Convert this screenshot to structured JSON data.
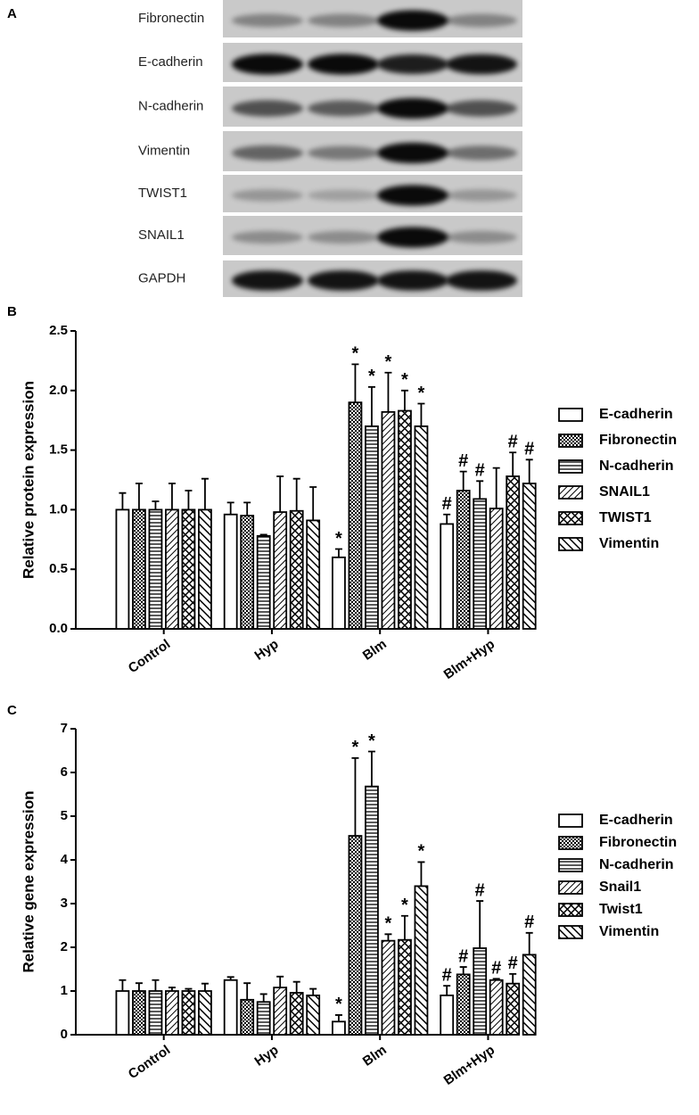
{
  "blot": {
    "label": "A",
    "proteins": [
      "Fibronectin",
      "E-cadherin",
      "N-cadherin",
      "Vimentin",
      "TWIST1",
      "SNAIL1",
      "GAPDH"
    ]
  },
  "chart_data": [
    {
      "type": "bar",
      "panel": "B",
      "ylabel": "Relative protein expression",
      "categories": [
        "Control",
        "Hyp",
        "Blm",
        "Blm+Hyp"
      ],
      "ylim": [
        0,
        2.5
      ],
      "yticks": [
        {
          "value": 0,
          "label": "0.0"
        },
        0.5,
        {
          "value": 1,
          "label": "1.0"
        },
        1.5,
        {
          "value": 2,
          "label": "2.0"
        },
        2.5
      ],
      "series": [
        {
          "name": "E-cadherin",
          "pattern": "none",
          "values": [
            1.0,
            0.96,
            0.6,
            0.88
          ],
          "errors": [
            0.14,
            0.1,
            0.07,
            0.08
          ],
          "markers": [
            null,
            null,
            "*",
            "#"
          ]
        },
        {
          "name": "Fibronectin",
          "pattern": "checker",
          "values": [
            1.0,
            0.95,
            1.9,
            1.16
          ],
          "errors": [
            0.22,
            0.11,
            0.32,
            0.16
          ],
          "markers": [
            null,
            null,
            "*",
            "#"
          ]
        },
        {
          "name": "N-cadherin",
          "pattern": "horizontal",
          "values": [
            1.0,
            0.78,
            1.7,
            1.09
          ],
          "errors": [
            0.07,
            0.01,
            0.33,
            0.15
          ],
          "markers": [
            null,
            null,
            "*",
            "#"
          ]
        },
        {
          "name": "SNAIL1",
          "pattern": "diagonal",
          "values": [
            1.0,
            0.98,
            1.82,
            1.01
          ],
          "errors": [
            0.22,
            0.3,
            0.33,
            0.34
          ],
          "markers": [
            null,
            null,
            "*",
            null
          ]
        },
        {
          "name": "TWIST1",
          "pattern": "cross",
          "values": [
            1.0,
            0.99,
            1.83,
            1.28
          ],
          "errors": [
            0.16,
            0.27,
            0.17,
            0.2
          ],
          "markers": [
            null,
            null,
            "*",
            "#"
          ]
        },
        {
          "name": "Vimentin",
          "pattern": "backdiagonal",
          "values": [
            1.0,
            0.91,
            1.7,
            1.22
          ],
          "errors": [
            0.26,
            0.28,
            0.19,
            0.2
          ],
          "markers": [
            null,
            null,
            "*",
            "#"
          ]
        }
      ]
    },
    {
      "type": "bar",
      "panel": "C",
      "ylabel": "Relative gene expression",
      "categories": [
        "Control",
        "Hyp",
        "Blm",
        "Blm+Hyp"
      ],
      "ylim": [
        0,
        7
      ],
      "yticks": [
        0,
        1,
        2,
        3,
        4,
        5,
        6,
        7
      ],
      "series": [
        {
          "name": "E-cadherin",
          "pattern": "none",
          "values": [
            1.0,
            1.25,
            0.3,
            0.9
          ],
          "errors": [
            0.25,
            0.07,
            0.15,
            0.22
          ],
          "markers": [
            null,
            null,
            "*",
            "#"
          ]
        },
        {
          "name": "Fibronectin",
          "pattern": "checker",
          "values": [
            1.0,
            0.8,
            4.55,
            1.38
          ],
          "errors": [
            0.18,
            0.38,
            1.78,
            0.17
          ],
          "markers": [
            null,
            null,
            "*",
            "#"
          ]
        },
        {
          "name": "N-cadherin",
          "pattern": "horizontal",
          "values": [
            1.0,
            0.75,
            5.68,
            1.98
          ],
          "errors": [
            0.25,
            0.18,
            0.8,
            1.08
          ],
          "markers": [
            null,
            null,
            "*",
            "#"
          ]
        },
        {
          "name": "Snail1",
          "pattern": "diagonal",
          "values": [
            1.0,
            1.08,
            2.15,
            1.25
          ],
          "errors": [
            0.08,
            0.25,
            0.15,
            0.03
          ],
          "markers": [
            null,
            null,
            "*",
            "#"
          ]
        },
        {
          "name": "Twist1",
          "pattern": "cross",
          "values": [
            1.0,
            0.96,
            2.17,
            1.17
          ],
          "errors": [
            0.05,
            0.25,
            0.55,
            0.22
          ],
          "markers": [
            null,
            null,
            "*",
            "#"
          ]
        },
        {
          "name": "Vimentin",
          "pattern": "backdiagonal",
          "values": [
            1.0,
            0.9,
            3.4,
            1.83
          ],
          "errors": [
            0.17,
            0.15,
            0.55,
            0.5
          ],
          "markers": [
            null,
            null,
            "*",
            "#"
          ]
        }
      ]
    }
  ]
}
